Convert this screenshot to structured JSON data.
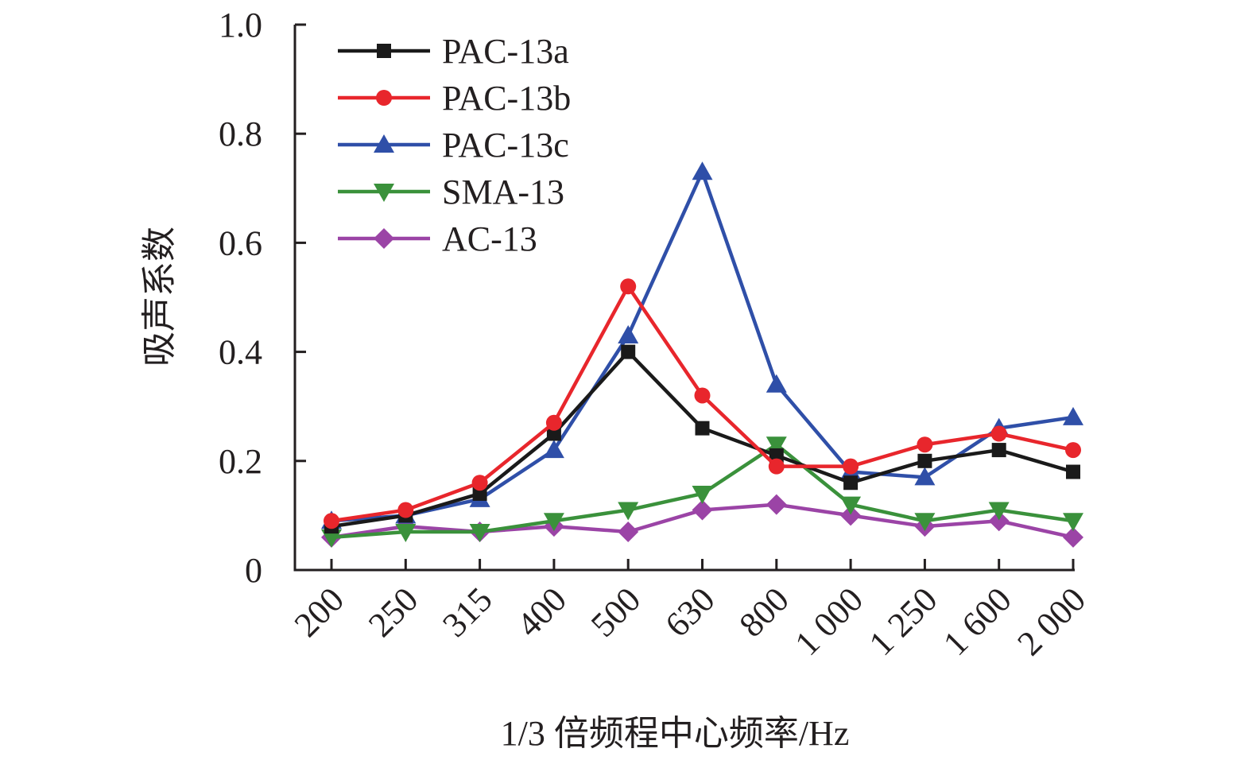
{
  "chart_data": {
    "type": "line",
    "title": "",
    "xlabel": "1/3 倍频程中心频率/Hz",
    "ylabel": "吸声系数",
    "categories": [
      "200",
      "250",
      "315",
      "400",
      "500",
      "630",
      "800",
      "1 000",
      "1 250",
      "1 600",
      "2 000"
    ],
    "ylim": [
      0,
      1.0
    ],
    "yticks": [
      0,
      0.2,
      0.4,
      0.6,
      0.8,
      1.0
    ],
    "ytick_labels": [
      "0",
      "0.2",
      "0.4",
      "0.6",
      "0.8",
      "1.0"
    ],
    "grid": false,
    "legend_position": "top-left",
    "series": [
      {
        "name": "PAC-13a",
        "color": "#1a1a1a",
        "marker": "square",
        "values": [
          0.08,
          0.1,
          0.14,
          0.25,
          0.4,
          0.26,
          0.21,
          0.16,
          0.2,
          0.22,
          0.18
        ]
      },
      {
        "name": "PAC-13b",
        "color": "#e8262c",
        "marker": "circle",
        "values": [
          0.09,
          0.11,
          0.16,
          0.27,
          0.52,
          0.32,
          0.19,
          0.19,
          0.23,
          0.25,
          0.22
        ]
      },
      {
        "name": "PAC-13c",
        "color": "#2f4fa8",
        "marker": "triangle-up",
        "values": [
          0.09,
          0.1,
          0.13,
          0.22,
          0.43,
          0.73,
          0.34,
          0.18,
          0.17,
          0.26,
          0.28
        ]
      },
      {
        "name": "SMA-13",
        "color": "#3a913b",
        "marker": "triangle-down",
        "values": [
          0.06,
          0.07,
          0.07,
          0.09,
          0.11,
          0.14,
          0.23,
          0.12,
          0.09,
          0.11,
          0.09
        ]
      },
      {
        "name": "AC-13",
        "color": "#9b44a6",
        "marker": "diamond",
        "values": [
          0.06,
          0.08,
          0.07,
          0.08,
          0.07,
          0.11,
          0.12,
          0.1,
          0.08,
          0.09,
          0.06
        ]
      }
    ]
  }
}
